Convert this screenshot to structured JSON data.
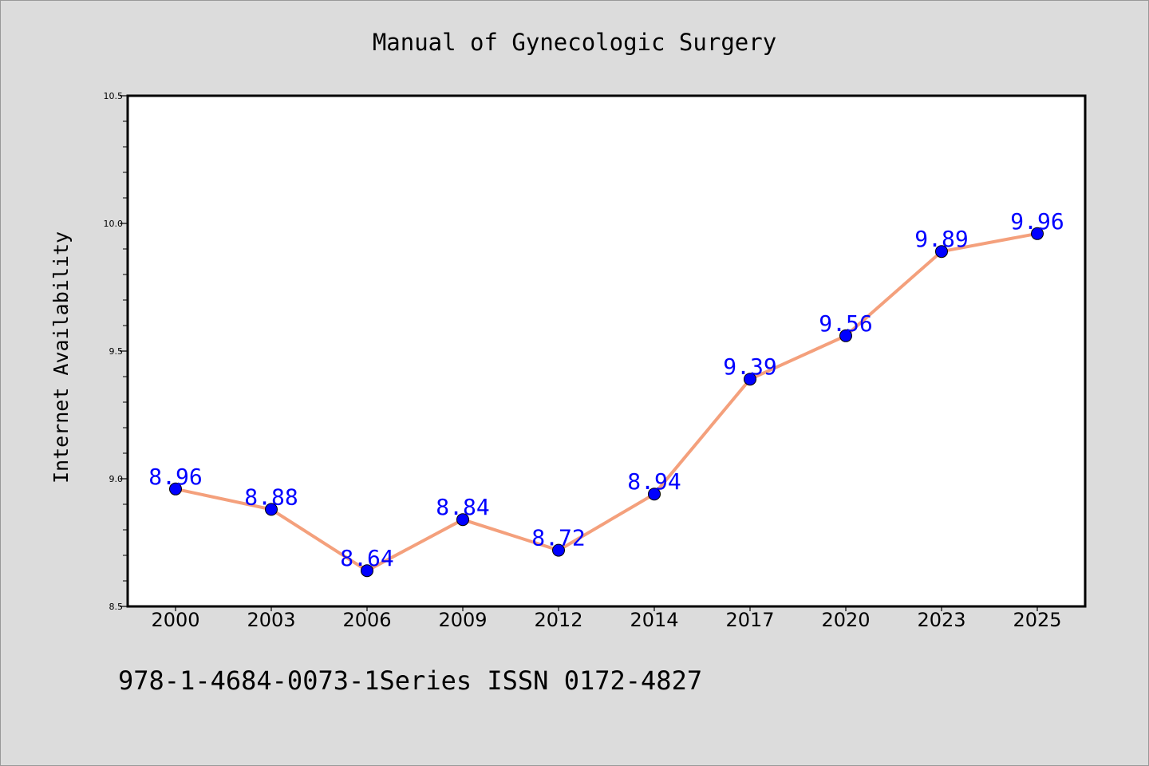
{
  "colors": {
    "background": "#dcdcdc",
    "plot_background": "#ffffff",
    "line": "#f4a07c",
    "marker": "#0000ff",
    "data_label": "#0000ff",
    "axis": "#000000"
  },
  "footer": "978-1-4684-0073-1Series ISSN 0172-4827",
  "chart_data": {
    "type": "line",
    "title": "Manual of Gynecologic Surgery",
    "xlabel": "",
    "ylabel": "Internet Availability",
    "categories": [
      "2000",
      "2003",
      "2006",
      "2009",
      "2012",
      "2014",
      "2017",
      "2020",
      "2023",
      "2025"
    ],
    "series": [
      {
        "values": [
          8.96,
          8.88,
          8.64,
          8.84,
          8.72,
          8.94,
          9.39,
          9.56,
          9.89,
          9.96
        ],
        "labels": [
          "8.96",
          "8.88",
          "8.64",
          "8.84",
          "8.72",
          "8.94",
          "9.39",
          "9.56",
          "9.89",
          "9.96"
        ]
      }
    ],
    "ylim": [
      8.5,
      10.5
    ],
    "yticks": [
      "8.5",
      "9.0",
      "9.5",
      "10.0",
      "10.5"
    ],
    "ytick_values": [
      8.5,
      9.0,
      9.5,
      10.0,
      10.5
    ],
    "minor_tick_step": 0.1,
    "grid": false,
    "legend": "none"
  }
}
